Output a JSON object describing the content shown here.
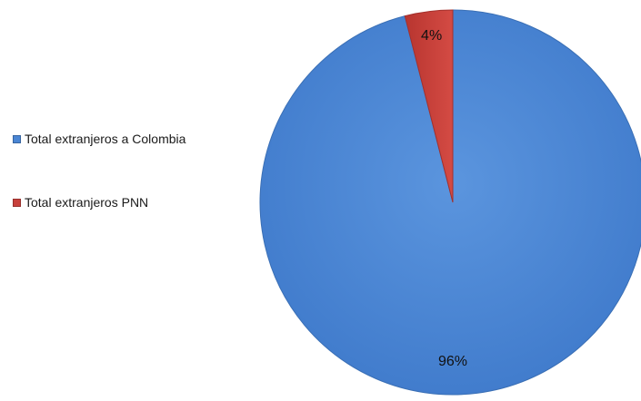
{
  "chart_data": {
    "type": "pie",
    "title": "",
    "categories": [
      "Total extranjeros a Colombia",
      "Total extranjeros PNN"
    ],
    "values": [
      96,
      4
    ],
    "data_labels": [
      "96%",
      "4%"
    ],
    "colors": [
      "#4a86d4",
      "#c8413c"
    ],
    "edge_colors": [
      "#3a6fb5",
      "#a4302c"
    ],
    "legend_position": "left"
  }
}
